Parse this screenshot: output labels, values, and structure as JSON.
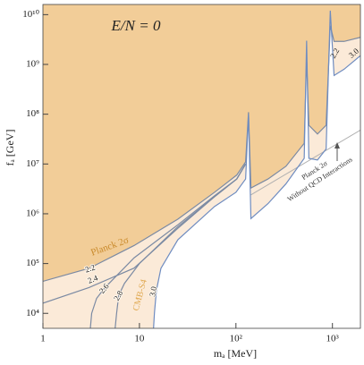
{
  "chart_data": {
    "type": "line",
    "title": "E/N = 0",
    "x_label": "mₐ [MeV]",
    "y_label": "fₐ [GeV]",
    "log_x": true,
    "log_y": true,
    "xlim": [
      1,
      1950
    ],
    "ylim": [
      5000,
      16000000000
    ],
    "xticks": [
      1,
      10,
      {
        "value": 100,
        "label": "10²"
      },
      {
        "value": 1000,
        "label": "10³"
      }
    ],
    "yticks": [
      {
        "value": 10000,
        "label": "10⁴"
      },
      {
        "value": 100000,
        "label": "10⁵"
      },
      {
        "value": 1000000,
        "label": "10⁶"
      },
      {
        "value": 10000000,
        "label": "10⁷"
      },
      {
        "value": 100000000,
        "label": "10⁸"
      },
      {
        "value": 1000000000,
        "label": "10⁹"
      },
      {
        "value": 10000000000,
        "label": "10¹⁰"
      }
    ],
    "series": [
      {
        "name": "2.2",
        "color": "#7b8aa3",
        "fill": "#f2cd98",
        "x": [
          1,
          3,
          8.8,
          25,
          60,
          102,
          126,
          135,
          143,
          215,
          330,
          510,
          540,
          570,
          700,
          860,
          950,
          1040,
          1320,
          1950
        ],
        "values": [
          44000,
          80000,
          230000,
          780000,
          2700000,
          6000000,
          11000000,
          110000000,
          3300000,
          5000000,
          9000000,
          26000000,
          1300000000,
          60000000,
          40000000,
          60000000,
          6000000000,
          2900000000,
          2900000000,
          3500000000
        ]
      },
      {
        "name": "2.4",
        "color": "#7b8aa3",
        "x": [
          1,
          3,
          8.8,
          25,
          60,
          102,
          126
        ],
        "values": [
          16000,
          33000,
          81000,
          510000,
          2200000,
          5000000,
          10000000
        ]
      },
      {
        "name": "2.6",
        "color": "#7b8aa3",
        "x": [
          3.1,
          3.2,
          3.6,
          4.4,
          8.8,
          25,
          60,
          102,
          126
        ],
        "values": [
          5000,
          10000,
          20000,
          33000,
          130000,
          600000,
          2300000,
          5000000,
          10000000
        ]
      },
      {
        "name": "2.8",
        "color": "#7b8aa3",
        "x": [
          5.6,
          5.8,
          6.1,
          7,
          10,
          25,
          60,
          102,
          126
        ],
        "values": [
          5000,
          10000,
          23000,
          40000,
          100000,
          550000,
          2200000,
          5000000,
          10000000
        ]
      },
      {
        "name": "3.0",
        "color": "#6f8cc0",
        "fill": "#fbead8",
        "x": [
          14,
          14.3,
          15,
          16.7,
          25,
          60,
          100,
          126,
          135,
          143,
          215,
          330,
          510,
          540,
          570,
          700,
          860,
          950,
          1040,
          1320,
          1950
        ],
        "values": [
          5000,
          10000,
          29000,
          80000,
          300000,
          1400000,
          2700000,
          5000000,
          100000000,
          800000,
          1600000,
          4000000,
          13000000,
          3000000000,
          13000000,
          12000000,
          20000000,
          12000000000,
          600000000,
          800000000,
          1500000000
        ]
      }
    ],
    "reference_line": {
      "color": "#b0b0b0",
      "x": [
        143,
        1950
      ],
      "values": [
        2400000,
        48000000
      ]
    },
    "annotations": [
      "Planck 2σ",
      "CMB-S4",
      "Planck 2σ",
      "Without QCD Interactions"
    ]
  }
}
